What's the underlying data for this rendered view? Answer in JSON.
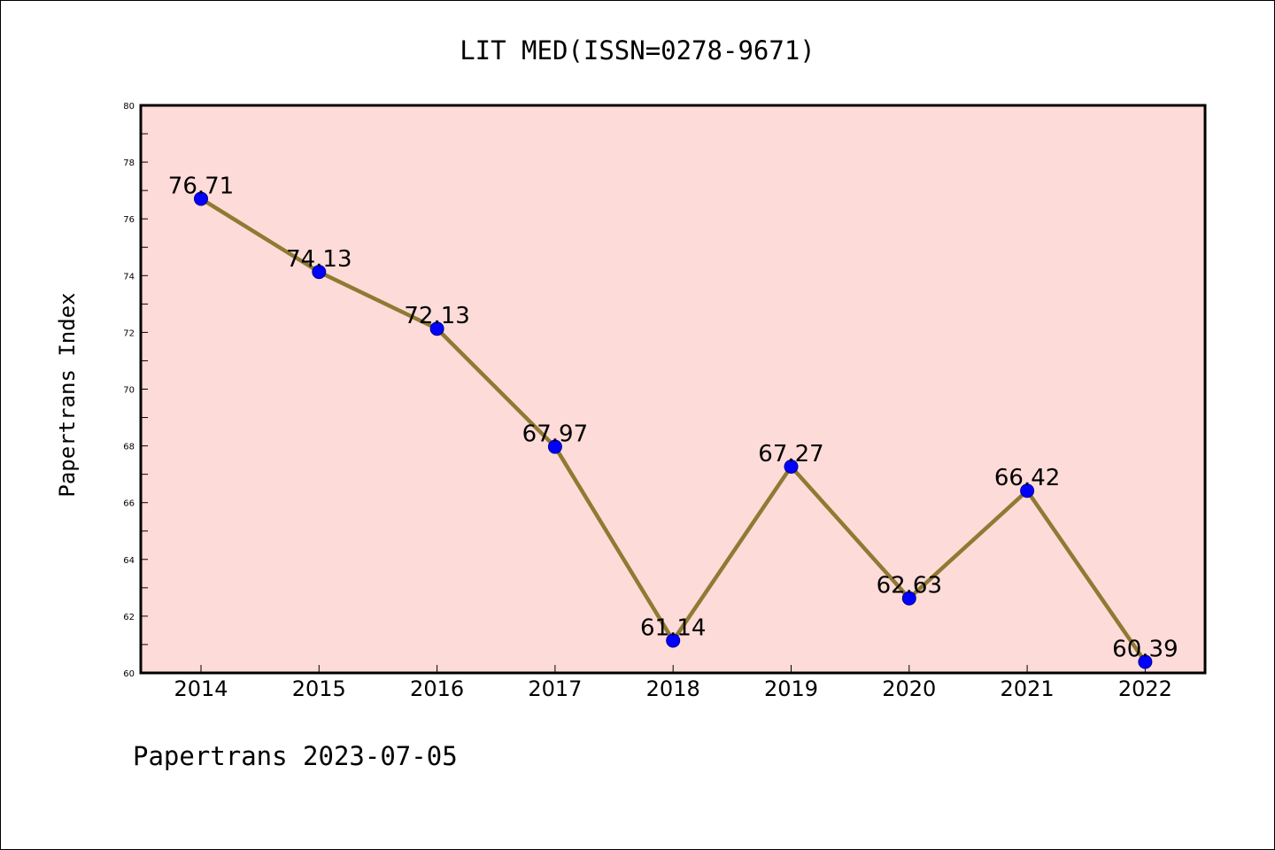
{
  "chart_data": {
    "type": "line",
    "title": "LIT MED(ISSN=0278-9671)",
    "xlabel": "",
    "ylabel": "Papertrans Index",
    "categories": [
      "2014",
      "2015",
      "2016",
      "2017",
      "2018",
      "2019",
      "2020",
      "2021",
      "2022"
    ],
    "series": [
      {
        "values": [
          76.71,
          74.13,
          72.13,
          67.97,
          61.14,
          67.27,
          62.63,
          66.42,
          60.39
        ],
        "data_labels": [
          "76.71",
          "74.13",
          "72.13",
          "67.97",
          "61.14",
          "67.27",
          "62.63",
          "66.42",
          "60.39"
        ]
      }
    ],
    "ylim": [
      60,
      80
    ],
    "yticks": [
      "60",
      "62",
      "64",
      "66",
      "68",
      "70",
      "72",
      "74",
      "76",
      "78",
      "80"
    ],
    "grid": false,
    "legend": "none",
    "colors": {
      "plot_background": "#fddbd8",
      "line": "#8f7a33",
      "marker": "#0000ff",
      "marker_edge": "#00008b"
    }
  },
  "footer": {
    "text": "Papertrans 2023-07-05"
  }
}
